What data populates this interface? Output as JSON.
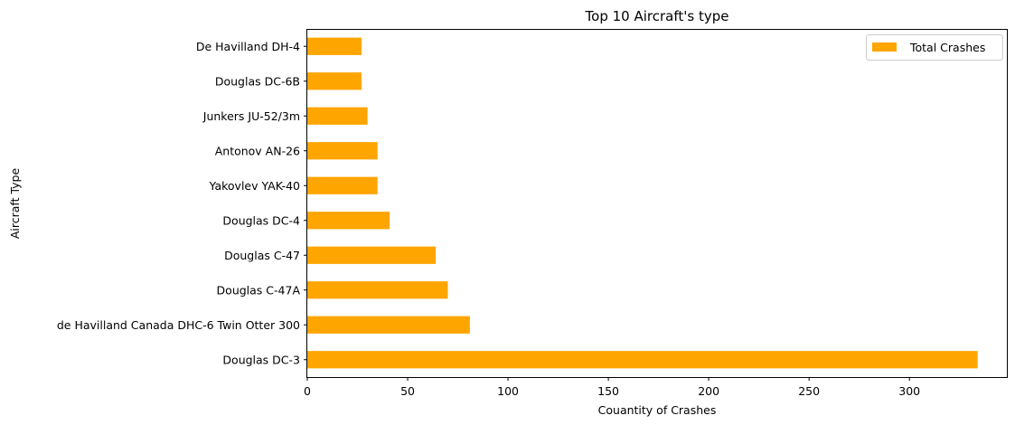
{
  "chart_data": {
    "type": "bar",
    "orientation": "horizontal",
    "title": "Top 10 Aircraft's type",
    "xlabel": "Couantity of Crashes",
    "ylabel": "Aircraft Type",
    "categories": [
      "Douglas DC-3",
      "de Havilland Canada DHC-6 Twin Otter 300",
      "Douglas C-47A",
      "Douglas C-47",
      "Douglas DC-4",
      "Yakovlev YAK-40",
      "Antonov AN-26",
      "Junkers JU-52/3m",
      "Douglas DC-6B",
      "De Havilland DH-4"
    ],
    "series": [
      {
        "name": "Total Crashes",
        "values": [
          334,
          81,
          70,
          64,
          41,
          35,
          35,
          30,
          27,
          27
        ]
      }
    ],
    "xlim": [
      0,
      349
    ],
    "xticks": [
      0,
      50,
      100,
      150,
      200,
      250,
      300
    ],
    "bar_color": "#FFA500",
    "grid": false,
    "legend_position": "top-right"
  }
}
